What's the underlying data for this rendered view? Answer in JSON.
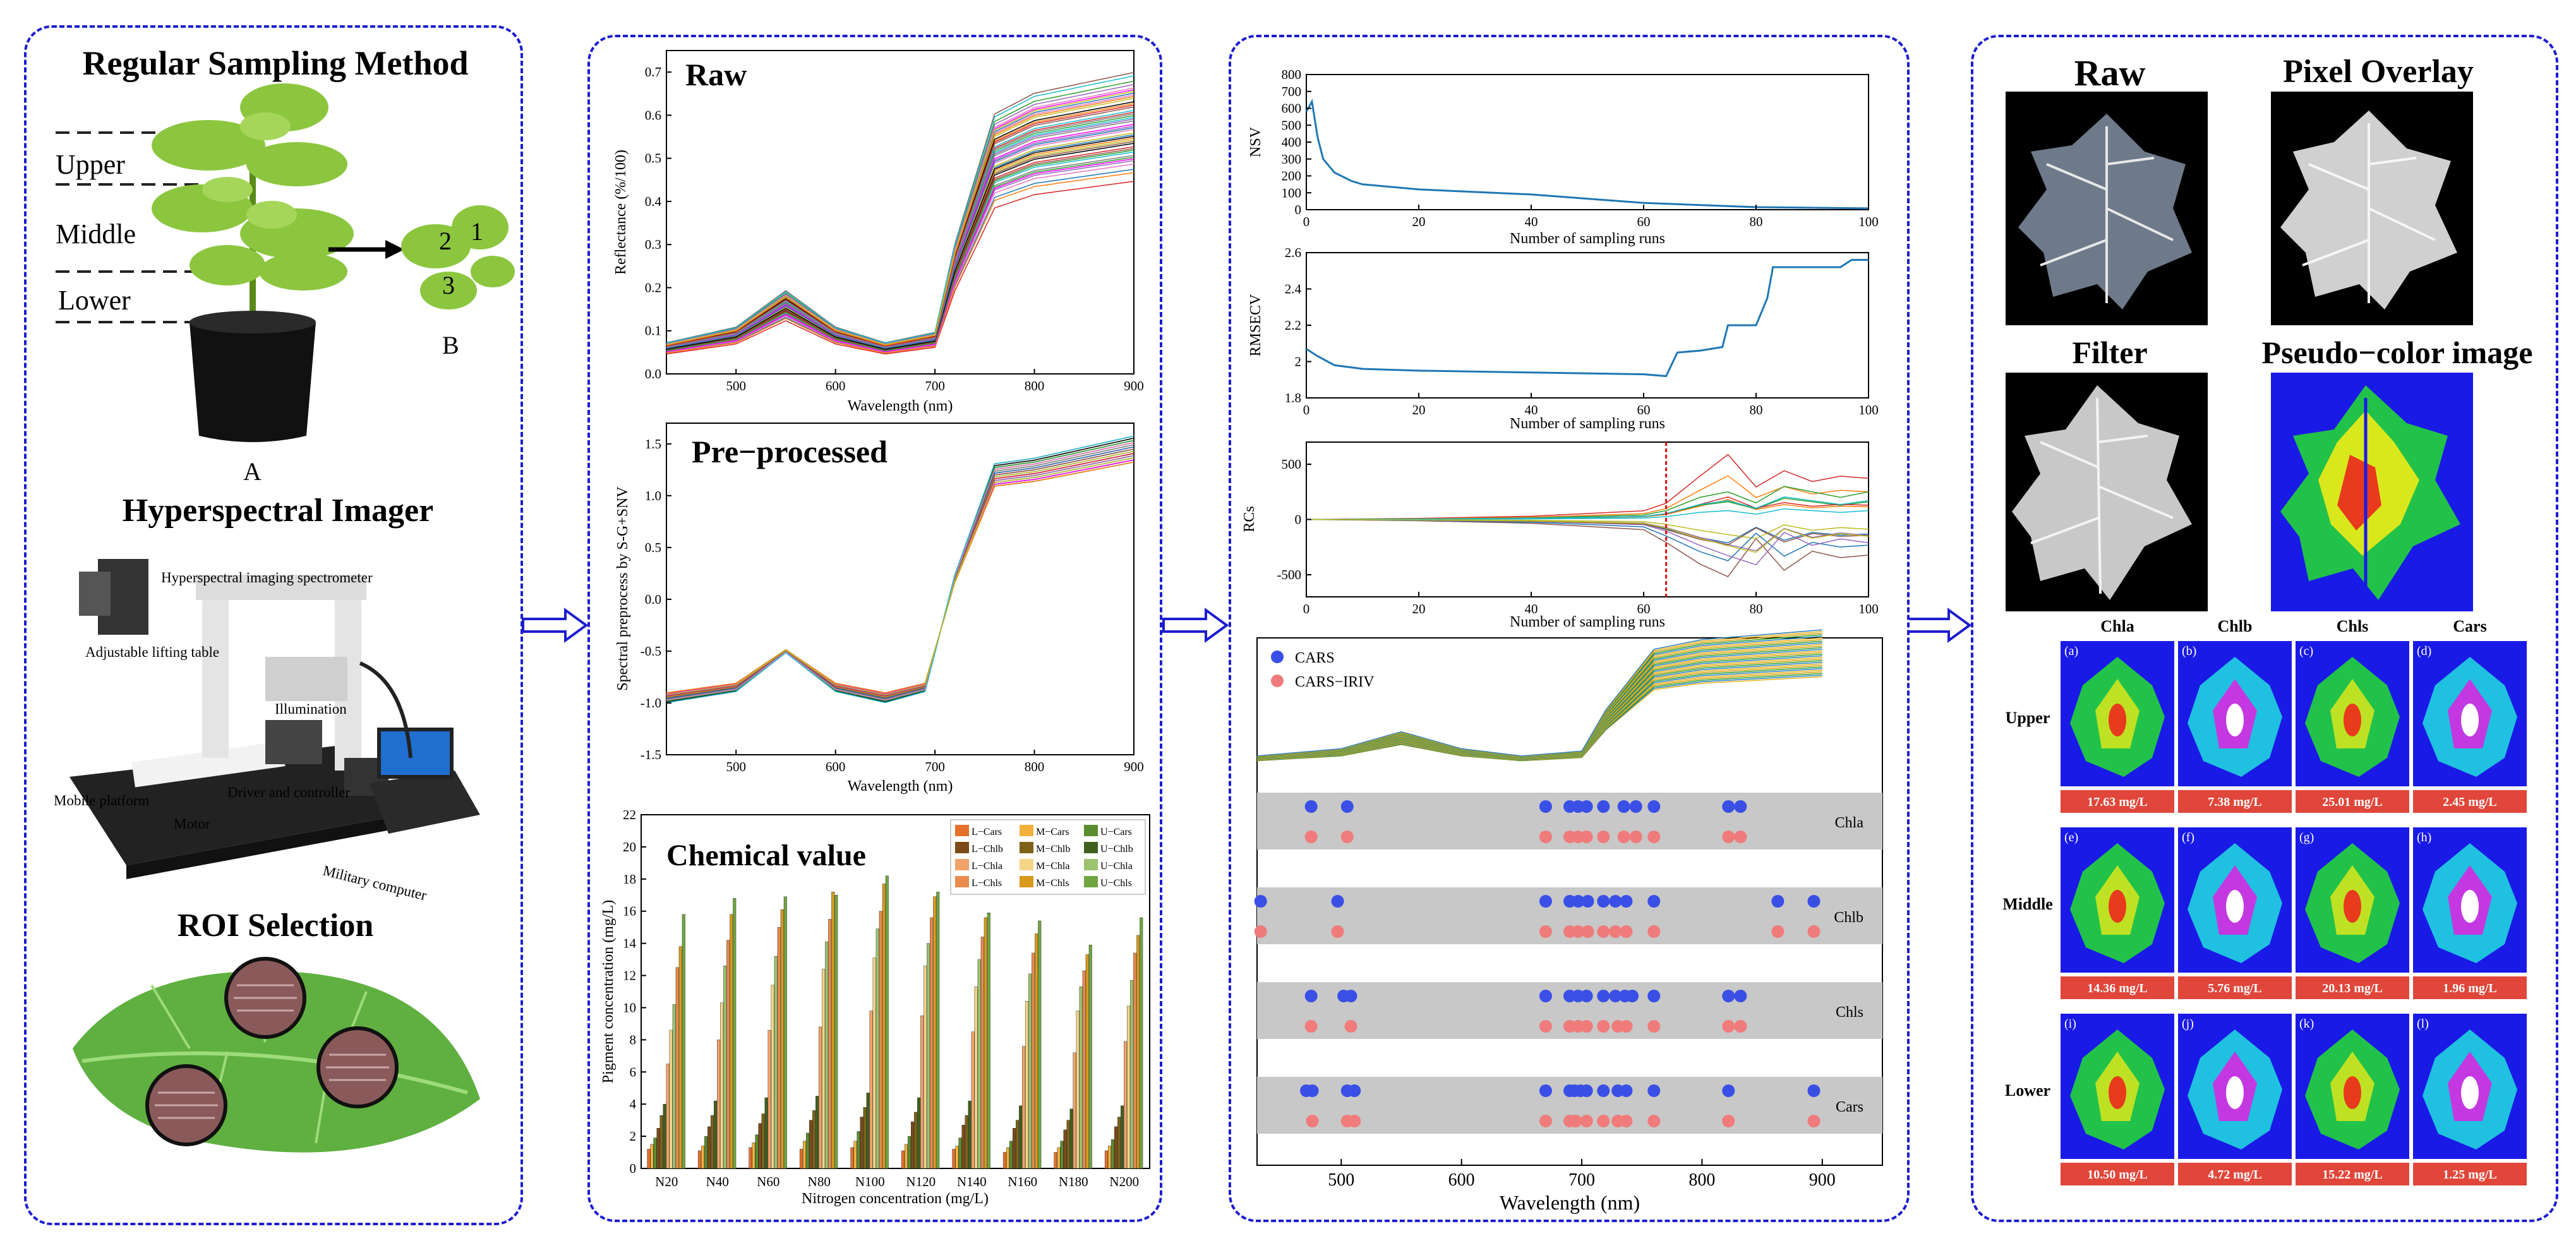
{
  "panel1": {
    "title_sampling": "Regular Sampling Method",
    "label_upper": "Upper",
    "label_middle": "Middle",
    "label_lower": "Lower",
    "label_A": "A",
    "label_B": "B",
    "leaf_numbers": [
      "2",
      "1",
      "3"
    ],
    "title_imager": "Hyperspectral Imager",
    "imager_labels": {
      "spectrometer": "Hyperspectral imaging spectrometer",
      "lifting_table": "Adjustable lifting table",
      "illumination": "Illumination",
      "mobile_platform": "Mobile platform",
      "motor": "Motor",
      "driver": "Driver and controller",
      "computer": "Military computer"
    },
    "title_roi": "ROI Selection"
  },
  "panel2": {
    "raw": {
      "title": "Raw",
      "ylabel": "Reflectance (%/100)",
      "xlabel": "Wavelength (nm)",
      "xticks": [
        "500",
        "600",
        "700",
        "800",
        "900"
      ],
      "yticks": [
        "0.0",
        "0.1",
        "0.2",
        "0.3",
        "0.4",
        "0.5",
        "0.6",
        "0.7"
      ]
    },
    "pre": {
      "title": "Pre−processed",
      "ylabel": "Spectral preprocess by S-G+SNV",
      "xlabel": "Wavelength (nm)",
      "xticks": [
        "500",
        "600",
        "700",
        "800",
        "900"
      ],
      "yticks": [
        "-1.5",
        "-1.0",
        "-0.5",
        "0.0",
        "0.5",
        "1.0",
        "1.5"
      ]
    },
    "chem": {
      "title": "Chemical value",
      "ylabel": "Pigment concentration (mg/L)",
      "xlabel": "Nitrogen concentration (mg/L)",
      "xticks": [
        "N20",
        "N40",
        "N60",
        "N80",
        "N100",
        "N120",
        "N140",
        "N160",
        "N180",
        "N200"
      ],
      "yticks": [
        "0",
        "2",
        "4",
        "6",
        "8",
        "10",
        "12",
        "14",
        "16",
        "18",
        "20",
        "22"
      ],
      "legend": [
        "L−Cars",
        "M−Cars",
        "U−Cars",
        "L−Chlb",
        "M−Chlb",
        "U−Chlb",
        "L−Chla",
        "M−Chla",
        "U−Chla",
        "L−Chls",
        "M−Chls",
        "U−Chls"
      ],
      "legend_colors": [
        "#e5702a",
        "#f2b13a",
        "#5a8e2e",
        "#7d4b17",
        "#7d6218",
        "#3f5f1e",
        "#f2a36a",
        "#f5d486",
        "#9cc36f",
        "#e98b4d",
        "#d99a1d",
        "#6fa63f"
      ]
    }
  },
  "panel3": {
    "nsv": {
      "ylabel": "NSV",
      "xlabel": "Number of sampling runs",
      "xticks": [
        "0",
        "20",
        "40",
        "60",
        "80",
        "100"
      ],
      "yticks": [
        "0",
        "100",
        "200",
        "300",
        "400",
        "500",
        "600",
        "700",
        "800"
      ]
    },
    "rmsecv": {
      "ylabel": "RMSECV",
      "xlabel": "Number of sampling runs",
      "xticks": [
        "0",
        "20",
        "40",
        "60",
        "80",
        "100"
      ],
      "yticks": [
        "1.8",
        "2",
        "2.2",
        "2.4",
        "2.6"
      ]
    },
    "rcs": {
      "ylabel": "RCs",
      "xlabel": "Number of sampling runs",
      "xticks": [
        "0",
        "20",
        "40",
        "60",
        "80",
        "100"
      ],
      "yticks": [
        "-500",
        "0",
        "500"
      ]
    },
    "sel": {
      "legend": [
        "CARS",
        "CARS−IRIV"
      ],
      "rows": [
        "Chla",
        "Chlb",
        "Chls",
        "Cars"
      ],
      "xlabel": "Wavelength (nm)",
      "xticks": [
        "500",
        "600",
        "700",
        "800",
        "900"
      ]
    }
  },
  "panel4": {
    "img_titles": [
      "Raw",
      "Pixel Overlay",
      "Filter",
      "Pseudo−color image"
    ],
    "col_headers": [
      "Chla",
      "Chlb",
      "Chls",
      "Cars"
    ],
    "row_headers": [
      "Upper",
      "Middle",
      "Lower"
    ],
    "letters": [
      "(a)",
      "(b)",
      "(c)",
      "(d)",
      "(e)",
      "(f)",
      "(g)",
      "(h)",
      "(i)",
      "(j)",
      "(k)",
      "(l)"
    ],
    "values": [
      "17.63 mg/L",
      "7.38 mg/L",
      "25.01 mg/L",
      "2.45 mg/L",
      "14.36 mg/L",
      "5.76 mg/L",
      "20.13 mg/L",
      "1.96 mg/L",
      "10.50 mg/L",
      "4.72 mg/L",
      "15.22 mg/L",
      "1.25 mg/L"
    ]
  },
  "colors": {
    "border": "#1c1ccf",
    "arrow": "#1c1ccf",
    "value_box": "#e0463a",
    "pseudo_bg": "#1a1ae6"
  },
  "chart_data": [
    {
      "type": "line",
      "title": "Raw",
      "xlabel": "Wavelength (nm)",
      "ylabel": "Reflectance (%/100)",
      "xlim": [
        430,
        900
      ],
      "ylim": [
        0,
        0.75
      ],
      "x": [
        430,
        500,
        550,
        600,
        650,
        700,
        720,
        760,
        800,
        900
      ],
      "series": [
        {
          "values": [
            0.06,
            0.09,
            0.16,
            0.09,
            0.06,
            0.08,
            0.25,
            0.5,
            0.54,
            0.58
          ]
        }
      ]
    },
    {
      "type": "line",
      "title": "Pre−processed",
      "xlabel": "Wavelength (nm)",
      "ylabel": "Spectral preprocess by S-G+SNV",
      "xlim": [
        430,
        900
      ],
      "ylim": [
        -1.5,
        1.7
      ],
      "x": [
        430,
        500,
        550,
        600,
        650,
        690,
        720,
        760,
        800,
        900
      ],
      "series": [
        {
          "values": [
            -0.95,
            -0.85,
            -0.5,
            -0.85,
            -0.95,
            -0.85,
            0.2,
            1.2,
            1.25,
            1.45
          ]
        }
      ]
    },
    {
      "type": "bar",
      "title": "Chemical value",
      "xlabel": "Nitrogen concentration (mg/L)",
      "ylabel": "Pigment concentration (mg/L)",
      "ylim": [
        0,
        22
      ],
      "categories": [
        "N20",
        "N40",
        "N60",
        "N80",
        "N100",
        "N120",
        "N140",
        "N160",
        "N180",
        "N200"
      ],
      "series": [
        {
          "name": "L−Cars",
          "values": [
            1.2,
            1.1,
            1.3,
            1.2,
            1.3,
            1.1,
            1.2,
            1.0,
            1.0,
            1.1
          ]
        },
        {
          "name": "M−Cars",
          "values": [
            1.5,
            1.4,
            1.6,
            1.7,
            1.7,
            1.5,
            1.4,
            1.3,
            1.3,
            1.4
          ]
        },
        {
          "name": "U−Cars",
          "values": [
            1.9,
            2.0,
            2.1,
            2.2,
            2.3,
            2.0,
            1.9,
            1.7,
            1.7,
            1.8
          ]
        },
        {
          "name": "L−Chlb",
          "values": [
            2.5,
            2.6,
            2.8,
            3.0,
            3.2,
            2.9,
            2.7,
            2.5,
            2.4,
            2.6
          ]
        },
        {
          "name": "M−Chlb",
          "values": [
            3.3,
            3.3,
            3.4,
            3.6,
            3.8,
            3.5,
            3.3,
            3.0,
            3.0,
            3.2
          ]
        },
        {
          "name": "U−Chlb",
          "values": [
            4.0,
            4.2,
            4.4,
            4.5,
            4.7,
            4.4,
            4.2,
            3.9,
            3.7,
            3.9
          ]
        },
        {
          "name": "L−Chla",
          "values": [
            6.5,
            8.0,
            8.6,
            8.8,
            9.8,
            9.5,
            8.5,
            7.6,
            7.2,
            7.9
          ]
        },
        {
          "name": "M−Chla",
          "values": [
            8.6,
            10.3,
            11.4,
            12.4,
            13.1,
            12.6,
            11.3,
            10.4,
            9.8,
            10.1
          ]
        },
        {
          "name": "U−Chla",
          "values": [
            10.2,
            12.6,
            13.2,
            14.1,
            14.9,
            14.0,
            13.0,
            12.1,
            11.3,
            11.7
          ]
        },
        {
          "name": "L−Chls",
          "values": [
            12.5,
            14.2,
            15.0,
            15.5,
            16.0,
            15.6,
            14.4,
            13.4,
            12.3,
            13.4
          ]
        },
        {
          "name": "M−Chls",
          "values": [
            13.8,
            15.8,
            16.1,
            17.2,
            17.7,
            16.9,
            15.6,
            14.6,
            13.3,
            14.5
          ]
        },
        {
          "name": "U−Chls",
          "values": [
            15.8,
            16.8,
            16.9,
            17.0,
            18.2,
            17.2,
            15.9,
            15.4,
            13.9,
            15.6
          ]
        }
      ]
    },
    {
      "type": "line",
      "xlabel": "Number of sampling runs",
      "ylabel": "NSV",
      "xlim": [
        0,
        100
      ],
      "ylim": [
        0,
        800
      ],
      "x": [
        0,
        1,
        2,
        3,
        5,
        8,
        10,
        20,
        40,
        60,
        80,
        100
      ],
      "series": [
        {
          "values": [
            580,
            640,
            430,
            300,
            220,
            170,
            150,
            120,
            90,
            40,
            15,
            8
          ]
        }
      ]
    },
    {
      "type": "line",
      "xlabel": "Number of sampling runs",
      "ylabel": "RMSECV",
      "xlim": [
        0,
        100
      ],
      "ylim": [
        1.8,
        2.6
      ],
      "x": [
        0,
        2,
        5,
        10,
        20,
        40,
        60,
        64,
        66,
        70,
        74,
        75,
        80,
        82,
        83,
        95,
        97,
        100
      ],
      "series": [
        {
          "values": [
            2.07,
            2.03,
            1.98,
            1.96,
            1.95,
            1.94,
            1.93,
            1.92,
            2.05,
            2.06,
            2.08,
            2.2,
            2.2,
            2.35,
            2.52,
            2.52,
            2.56,
            2.56
          ]
        }
      ]
    },
    {
      "type": "line",
      "xlabel": "Number of sampling runs",
      "ylabel": "RCs",
      "xlim": [
        0,
        100
      ],
      "ylim": [
        -700,
        700
      ],
      "x": [
        0,
        20,
        40,
        60,
        64,
        70,
        75,
        80,
        85,
        90,
        95,
        100
      ],
      "series": [
        {
          "values": [
            0,
            10,
            30,
            80,
            150,
            400,
            600,
            300,
            450,
            350,
            400,
            380
          ]
        },
        {
          "values": [
            0,
            -10,
            -30,
            -80,
            -180,
            -350,
            -450,
            -150,
            -400,
            -250,
            -300,
            -280
          ]
        },
        {
          "values": [
            0,
            5,
            15,
            40,
            80,
            200,
            250,
            150,
            300,
            250,
            200,
            250
          ]
        },
        {
          "values": [
            0,
            -5,
            -15,
            -40,
            -90,
            -200,
            -280,
            -350,
            -100,
            -200,
            -150,
            -180
          ]
        }
      ]
    },
    {
      "type": "scatter",
      "xlabel": "Wavelength (nm)",
      "xlim": [
        430,
        950
      ],
      "series": [
        {
          "name": "CARS",
          "row": "Chla",
          "values": [
            475,
            505,
            670,
            690,
            697,
            704,
            718,
            735,
            745,
            760,
            822,
            832
          ]
        },
        {
          "name": "CARS−IRIV",
          "row": "Chla",
          "values": [
            475,
            505,
            670,
            690,
            697,
            704,
            718,
            735,
            745,
            760,
            822,
            832
          ]
        },
        {
          "name": "CARS",
          "row": "Chlb",
          "values": [
            433,
            497,
            670,
            690,
            697,
            705,
            718,
            728,
            737,
            760,
            863,
            893
          ]
        },
        {
          "name": "CARS−IRIV",
          "row": "Chlb",
          "values": [
            433,
            497,
            670,
            690,
            697,
            705,
            718,
            728,
            737,
            760,
            863,
            893
          ]
        },
        {
          "name": "CARS",
          "row": "Chls",
          "values": [
            475,
            502,
            508,
            670,
            690,
            697,
            704,
            718,
            728,
            736,
            742,
            760,
            822,
            832
          ]
        },
        {
          "name": "CARS−IRIV",
          "row": "Chls",
          "values": [
            475,
            508,
            670,
            690,
            697,
            704,
            718,
            730,
            737,
            760,
            822,
            832
          ]
        },
        {
          "name": "CARS",
          "row": "Cars",
          "values": [
            471,
            476,
            505,
            511,
            670,
            690,
            694,
            699,
            704,
            718,
            730,
            737,
            760,
            822,
            893
          ]
        },
        {
          "name": "CARS−IRIV",
          "row": "Cars",
          "values": [
            476,
            505,
            511,
            670,
            690,
            695,
            704,
            718,
            730,
            737,
            760,
            822,
            893
          ]
        }
      ]
    }
  ]
}
